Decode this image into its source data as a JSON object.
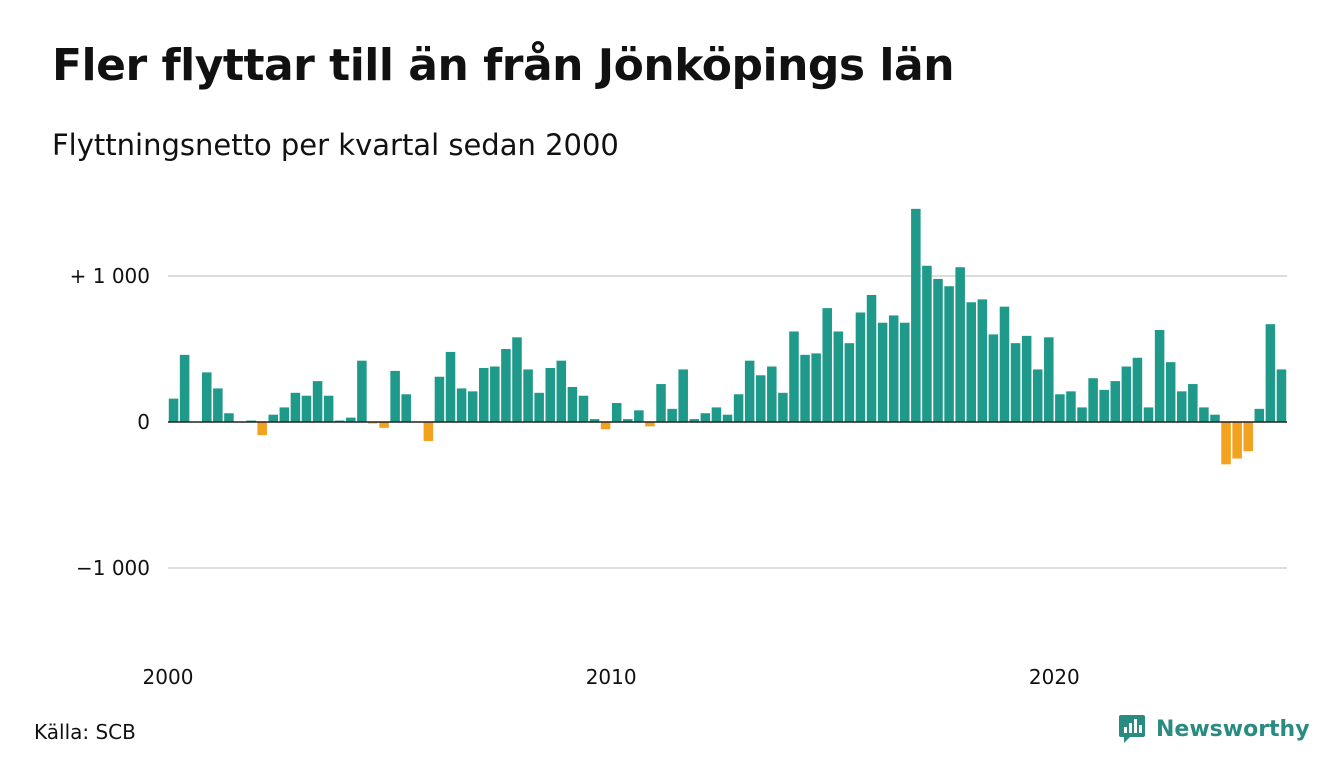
{
  "header": {
    "title": "Fler flyttar till än från Jönköpings län",
    "subtitle": "Flyttningsnetto per kvartal sedan 2000"
  },
  "footer": {
    "source": "Källa: SCB",
    "brand": "Newsworthy"
  },
  "colors": {
    "positive": "#1f9a8a",
    "negative": "#f2a21f",
    "grid": "#dddddd",
    "axis": "#222222",
    "brand": "#2a8c80"
  },
  "icons": {
    "brand_logo": "newsworthy-logo-icon"
  },
  "chart_data": {
    "type": "bar",
    "title": "Fler flyttar till än från Jönköpings län",
    "subtitle": "Flyttningsnetto per kvartal sedan 2000",
    "xlabel": "",
    "ylabel": "",
    "ylim": [
      -1600,
      1500
    ],
    "yticks": [
      {
        "value": 1000,
        "label": "+ 1 000"
      },
      {
        "value": 0,
        "label": "0"
      },
      {
        "value": -1000,
        "label": "−1 000"
      }
    ],
    "xticks": [
      {
        "value": "2000",
        "label": "2000"
      },
      {
        "value": "2010",
        "label": "2010"
      },
      {
        "value": "2020",
        "label": "2020"
      }
    ],
    "grid": true,
    "categories": [
      "2000 Q1",
      "2000 Q2",
      "2000 Q3",
      "2000 Q4",
      "2001 Q1",
      "2001 Q2",
      "2001 Q3",
      "2001 Q4",
      "2002 Q1",
      "2002 Q2",
      "2002 Q3",
      "2002 Q4",
      "2003 Q1",
      "2003 Q2",
      "2003 Q3",
      "2003 Q4",
      "2004 Q1",
      "2004 Q2",
      "2004 Q3",
      "2004 Q4",
      "2005 Q1",
      "2005 Q2",
      "2005 Q3",
      "2005 Q4",
      "2006 Q1",
      "2006 Q2",
      "2006 Q3",
      "2006 Q4",
      "2007 Q1",
      "2007 Q2",
      "2007 Q3",
      "2007 Q4",
      "2008 Q1",
      "2008 Q2",
      "2008 Q3",
      "2008 Q4",
      "2009 Q1",
      "2009 Q2",
      "2009 Q3",
      "2009 Q4",
      "2010 Q1",
      "2010 Q2",
      "2010 Q3",
      "2010 Q4",
      "2011 Q1",
      "2011 Q2",
      "2011 Q3",
      "2011 Q4",
      "2012 Q1",
      "2012 Q2",
      "2012 Q3",
      "2012 Q4",
      "2013 Q1",
      "2013 Q2",
      "2013 Q3",
      "2013 Q4",
      "2014 Q1",
      "2014 Q2",
      "2014 Q3",
      "2014 Q4",
      "2015 Q1",
      "2015 Q2",
      "2015 Q3",
      "2015 Q4",
      "2016 Q1",
      "2016 Q2",
      "2016 Q3",
      "2016 Q4",
      "2017 Q1",
      "2017 Q2",
      "2017 Q3",
      "2017 Q4",
      "2018 Q1",
      "2018 Q2",
      "2018 Q3",
      "2018 Q4",
      "2019 Q1",
      "2019 Q2",
      "2019 Q3",
      "2019 Q4",
      "2020 Q1",
      "2020 Q2",
      "2020 Q3",
      "2020 Q4",
      "2021 Q1",
      "2021 Q2",
      "2021 Q3",
      "2021 Q4",
      "2022 Q1",
      "2022 Q2",
      "2022 Q3",
      "2022 Q4",
      "2023 Q1",
      "2023 Q2",
      "2023 Q3",
      "2023 Q4",
      "2024 Q1",
      "2024 Q2",
      "2024 Q3",
      "2024 Q4",
      "2025 Q1"
    ],
    "values": [
      160,
      460,
      0,
      340,
      230,
      60,
      0,
      10,
      -90,
      50,
      100,
      200,
      180,
      280,
      180,
      10,
      30,
      420,
      -10,
      -40,
      350,
      190,
      0,
      -130,
      310,
      480,
      230,
      210,
      370,
      380,
      500,
      580,
      360,
      200,
      370,
      420,
      240,
      180,
      20,
      -50,
      130,
      20,
      80,
      -30,
      260,
      90,
      360,
      20,
      60,
      100,
      50,
      190,
      420,
      320,
      380,
      200,
      620,
      460,
      470,
      780,
      620,
      540,
      750,
      870,
      680,
      730,
      680,
      1460,
      1070,
      980,
      930,
      1060,
      820,
      840,
      600,
      790,
      540,
      590,
      360,
      580,
      190,
      210,
      100,
      300,
      220,
      280,
      380,
      440,
      100,
      630,
      410,
      210,
      260,
      100,
      50,
      -290,
      -250,
      -200,
      90,
      670,
      360
    ]
  }
}
